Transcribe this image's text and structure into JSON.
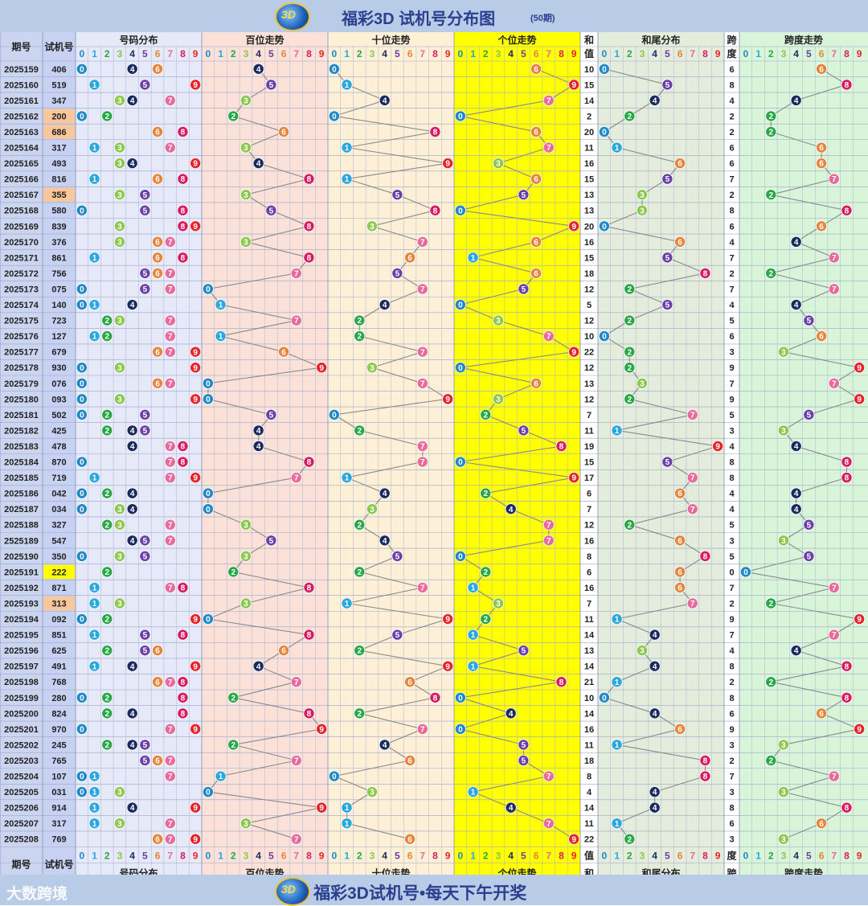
{
  "header": {
    "title": "福彩3D 试机号分布图",
    "subtitle": "(50期)"
  },
  "footer": {
    "slogan": "福彩3D试机号•每天下午开奖",
    "watermark": "大数跨境"
  },
  "logo_text": "3D",
  "columns": {
    "period": "期号",
    "trial": "试机号",
    "dist": "号码分布",
    "hundreds": "百位走势",
    "tens": "十位走势",
    "units": "个位走势",
    "sum_top": "和",
    "sum_bottom": "值",
    "tail": "和尾分布",
    "span_top": "跨",
    "span_bottom": "度",
    "span_trend": "跨度走势"
  },
  "digits": [
    "0",
    "1",
    "2",
    "3",
    "4",
    "5",
    "6",
    "7",
    "8",
    "9"
  ],
  "colors": {
    "ball": [
      "#1e88c8",
      "#29a8e0",
      "#27a845",
      "#8cc84b",
      "#1a2a5e",
      "#6a3fa8",
      "#e8843a",
      "#e86a9a",
      "#d81b60",
      "#e8232a"
    ],
    "period_bg": "#ccd5f0",
    "trial_bg": "#c7d2f2",
    "dist_bg": "#e5e9f8",
    "hundreds_bg": "#fbe1d8",
    "tens_bg": "#fdf0d6",
    "units_bg": "#ffff00",
    "tail_bg": "#e4ecdb",
    "span_bg": "#d9f5d9",
    "highlight_pair": "#f9c79a",
    "highlight_triple": "#ffff00"
  },
  "chart_data": {
    "type": "table",
    "rows": [
      {
        "period": "2025159",
        "trial": "406",
        "h": 4,
        "t": 0,
        "u": 6,
        "sum": 10,
        "tail": 0,
        "span": 6
      },
      {
        "period": "2025160",
        "trial": "519",
        "h": 5,
        "t": 1,
        "u": 9,
        "sum": 15,
        "tail": 5,
        "span": 8
      },
      {
        "period": "2025161",
        "trial": "347",
        "h": 3,
        "t": 4,
        "u": 7,
        "sum": 14,
        "tail": 4,
        "span": 4
      },
      {
        "period": "2025162",
        "trial": "200",
        "h": 2,
        "t": 0,
        "u": 0,
        "sum": 2,
        "tail": 2,
        "span": 2,
        "mark": "pair"
      },
      {
        "period": "2025163",
        "trial": "686",
        "h": 6,
        "t": 8,
        "u": 6,
        "sum": 20,
        "tail": 0,
        "span": 2,
        "mark": "pair"
      },
      {
        "period": "2025164",
        "trial": "317",
        "h": 3,
        "t": 1,
        "u": 7,
        "sum": 11,
        "tail": 1,
        "span": 6
      },
      {
        "period": "2025165",
        "trial": "493",
        "h": 4,
        "t": 9,
        "u": 3,
        "sum": 16,
        "tail": 6,
        "span": 6
      },
      {
        "period": "2025166",
        "trial": "816",
        "h": 8,
        "t": 1,
        "u": 6,
        "sum": 15,
        "tail": 5,
        "span": 7
      },
      {
        "period": "2025167",
        "trial": "355",
        "h": 3,
        "t": 5,
        "u": 5,
        "sum": 13,
        "tail": 3,
        "span": 2,
        "mark": "pair"
      },
      {
        "period": "2025168",
        "trial": "580",
        "h": 5,
        "t": 8,
        "u": 0,
        "sum": 13,
        "tail": 3,
        "span": 8
      },
      {
        "period": "2025169",
        "trial": "839",
        "h": 8,
        "t": 3,
        "u": 9,
        "sum": 20,
        "tail": 0,
        "span": 6
      },
      {
        "period": "2025170",
        "trial": "376",
        "h": 3,
        "t": 7,
        "u": 6,
        "sum": 16,
        "tail": 6,
        "span": 4
      },
      {
        "period": "2025171",
        "trial": "861",
        "h": 8,
        "t": 6,
        "u": 1,
        "sum": 15,
        "tail": 5,
        "span": 7
      },
      {
        "period": "2025172",
        "trial": "756",
        "h": 7,
        "t": 5,
        "u": 6,
        "sum": 18,
        "tail": 8,
        "span": 2
      },
      {
        "period": "2025173",
        "trial": "075",
        "h": 0,
        "t": 7,
        "u": 5,
        "sum": 12,
        "tail": 2,
        "span": 7
      },
      {
        "period": "2025174",
        "trial": "140",
        "h": 1,
        "t": 4,
        "u": 0,
        "sum": 5,
        "tail": 5,
        "span": 4
      },
      {
        "period": "2025175",
        "trial": "723",
        "h": 7,
        "t": 2,
        "u": 3,
        "sum": 12,
        "tail": 2,
        "span": 5
      },
      {
        "period": "2025176",
        "trial": "127",
        "h": 1,
        "t": 2,
        "u": 7,
        "sum": 10,
        "tail": 0,
        "span": 6
      },
      {
        "period": "2025177",
        "trial": "679",
        "h": 6,
        "t": 7,
        "u": 9,
        "sum": 22,
        "tail": 2,
        "span": 3
      },
      {
        "period": "2025178",
        "trial": "930",
        "h": 9,
        "t": 3,
        "u": 0,
        "sum": 12,
        "tail": 2,
        "span": 9
      },
      {
        "period": "2025179",
        "trial": "076",
        "h": 0,
        "t": 7,
        "u": 6,
        "sum": 13,
        "tail": 3,
        "span": 7
      },
      {
        "period": "2025180",
        "trial": "093",
        "h": 0,
        "t": 9,
        "u": 3,
        "sum": 12,
        "tail": 2,
        "span": 9
      },
      {
        "period": "2025181",
        "trial": "502",
        "h": 5,
        "t": 0,
        "u": 2,
        "sum": 7,
        "tail": 7,
        "span": 5
      },
      {
        "period": "2025182",
        "trial": "425",
        "h": 4,
        "t": 2,
        "u": 5,
        "sum": 11,
        "tail": 1,
        "span": 3
      },
      {
        "period": "2025183",
        "trial": "478",
        "h": 4,
        "t": 7,
        "u": 8,
        "sum": 19,
        "tail": 9,
        "span": 4
      },
      {
        "period": "2025184",
        "trial": "870",
        "h": 8,
        "t": 7,
        "u": 0,
        "sum": 15,
        "tail": 5,
        "span": 8
      },
      {
        "period": "2025185",
        "trial": "719",
        "h": 7,
        "t": 1,
        "u": 9,
        "sum": 17,
        "tail": 7,
        "span": 8
      },
      {
        "period": "2025186",
        "trial": "042",
        "h": 0,
        "t": 4,
        "u": 2,
        "sum": 6,
        "tail": 6,
        "span": 4
      },
      {
        "period": "2025187",
        "trial": "034",
        "h": 0,
        "t": 3,
        "u": 4,
        "sum": 7,
        "tail": 7,
        "span": 4
      },
      {
        "period": "2025188",
        "trial": "327",
        "h": 3,
        "t": 2,
        "u": 7,
        "sum": 12,
        "tail": 2,
        "span": 5
      },
      {
        "period": "2525189",
        "trial": "547",
        "h": 5,
        "t": 4,
        "u": 7,
        "sum": 16,
        "tail": 6,
        "span": 3
      },
      {
        "period": "2025190",
        "trial": "350",
        "h": 3,
        "t": 5,
        "u": 0,
        "sum": 8,
        "tail": 8,
        "span": 5
      },
      {
        "period": "2025191",
        "trial": "222",
        "h": 2,
        "t": 2,
        "u": 2,
        "sum": 6,
        "tail": 6,
        "span": 0,
        "mark": "triple"
      },
      {
        "period": "2025192",
        "trial": "871",
        "h": 8,
        "t": 7,
        "u": 1,
        "sum": 16,
        "tail": 6,
        "span": 7
      },
      {
        "period": "2025193",
        "trial": "313",
        "h": 3,
        "t": 1,
        "u": 3,
        "sum": 7,
        "tail": 7,
        "span": 2,
        "mark": "pair"
      },
      {
        "period": "2025194",
        "trial": "092",
        "h": 0,
        "t": 9,
        "u": 2,
        "sum": 11,
        "tail": 1,
        "span": 9
      },
      {
        "period": "2025195",
        "trial": "851",
        "h": 8,
        "t": 5,
        "u": 1,
        "sum": 14,
        "tail": 4,
        "span": 7
      },
      {
        "period": "2025196",
        "trial": "625",
        "h": 6,
        "t": 2,
        "u": 5,
        "sum": 13,
        "tail": 3,
        "span": 4
      },
      {
        "period": "2025197",
        "trial": "491",
        "h": 4,
        "t": 9,
        "u": 1,
        "sum": 14,
        "tail": 4,
        "span": 8
      },
      {
        "period": "2025198",
        "trial": "768",
        "h": 7,
        "t": 6,
        "u": 8,
        "sum": 21,
        "tail": 1,
        "span": 2
      },
      {
        "period": "2025199",
        "trial": "280",
        "h": 2,
        "t": 8,
        "u": 0,
        "sum": 10,
        "tail": 0,
        "span": 8
      },
      {
        "period": "2025200",
        "trial": "824",
        "h": 8,
        "t": 2,
        "u": 4,
        "sum": 14,
        "tail": 4,
        "span": 6
      },
      {
        "period": "2025201",
        "trial": "970",
        "h": 9,
        "t": 7,
        "u": 0,
        "sum": 16,
        "tail": 6,
        "span": 9
      },
      {
        "period": "2025202",
        "trial": "245",
        "h": 2,
        "t": 4,
        "u": 5,
        "sum": 11,
        "tail": 1,
        "span": 3
      },
      {
        "period": "2025203",
        "trial": "765",
        "h": 7,
        "t": 6,
        "u": 5,
        "sum": 18,
        "tail": 8,
        "span": 2
      },
      {
        "period": "2025204",
        "trial": "107",
        "h": 1,
        "t": 0,
        "u": 7,
        "sum": 8,
        "tail": 8,
        "span": 7
      },
      {
        "period": "2025205",
        "trial": "031",
        "h": 0,
        "t": 3,
        "u": 1,
        "sum": 4,
        "tail": 4,
        "span": 3
      },
      {
        "period": "2025206",
        "trial": "914",
        "h": 9,
        "t": 1,
        "u": 4,
        "sum": 14,
        "tail": 4,
        "span": 8
      },
      {
        "period": "2025207",
        "trial": "317",
        "h": 3,
        "t": 1,
        "u": 7,
        "sum": 11,
        "tail": 1,
        "span": 6
      },
      {
        "period": "2025208",
        "trial": "769",
        "h": 7,
        "t": 6,
        "u": 9,
        "sum": 22,
        "tail": 2,
        "span": 3
      }
    ]
  }
}
